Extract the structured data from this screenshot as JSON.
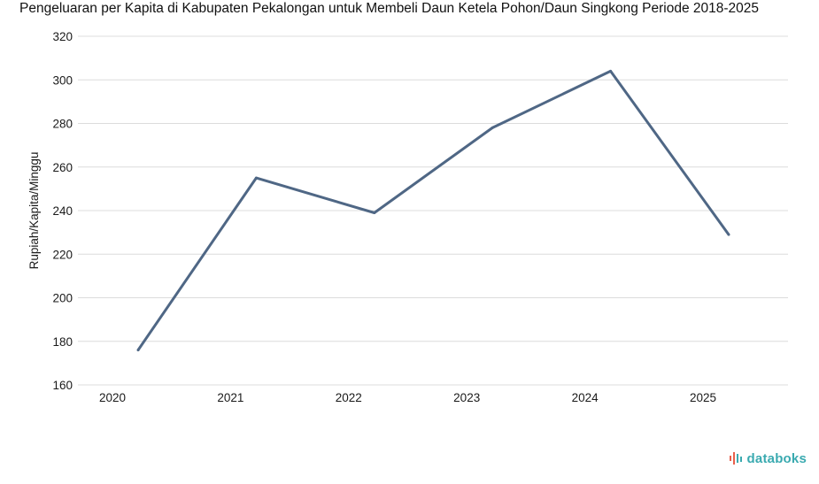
{
  "chart_data": {
    "type": "line",
    "title": "Pengeluaran per Kapita di Kabupaten Pekalongan untuk Membeli Daun Ketela Pohon/Daun Singkong Periode 2018-2025",
    "xlabel": "",
    "ylabel": "Rupiah/Kapita/Minggu",
    "categories": [
      "2020",
      "2021",
      "2022",
      "2023",
      "2024",
      "2025"
    ],
    "series": [
      {
        "values": [
          176,
          255,
          239,
          278,
          304,
          229
        ]
      }
    ],
    "yticks": [
      "160",
      "180",
      "200",
      "220",
      "240",
      "260",
      "280",
      "300",
      "320"
    ],
    "ylim": [
      160,
      320
    ],
    "grid": true,
    "legend": "none",
    "colors": {
      "line": "#4f6785",
      "grid": "#dcdcdc",
      "brand": "#3aaab0",
      "brand_mark": "#e8604c"
    }
  },
  "branding": {
    "logo_text": "databoks",
    "logo_icon": "databoks-logo-icon"
  }
}
